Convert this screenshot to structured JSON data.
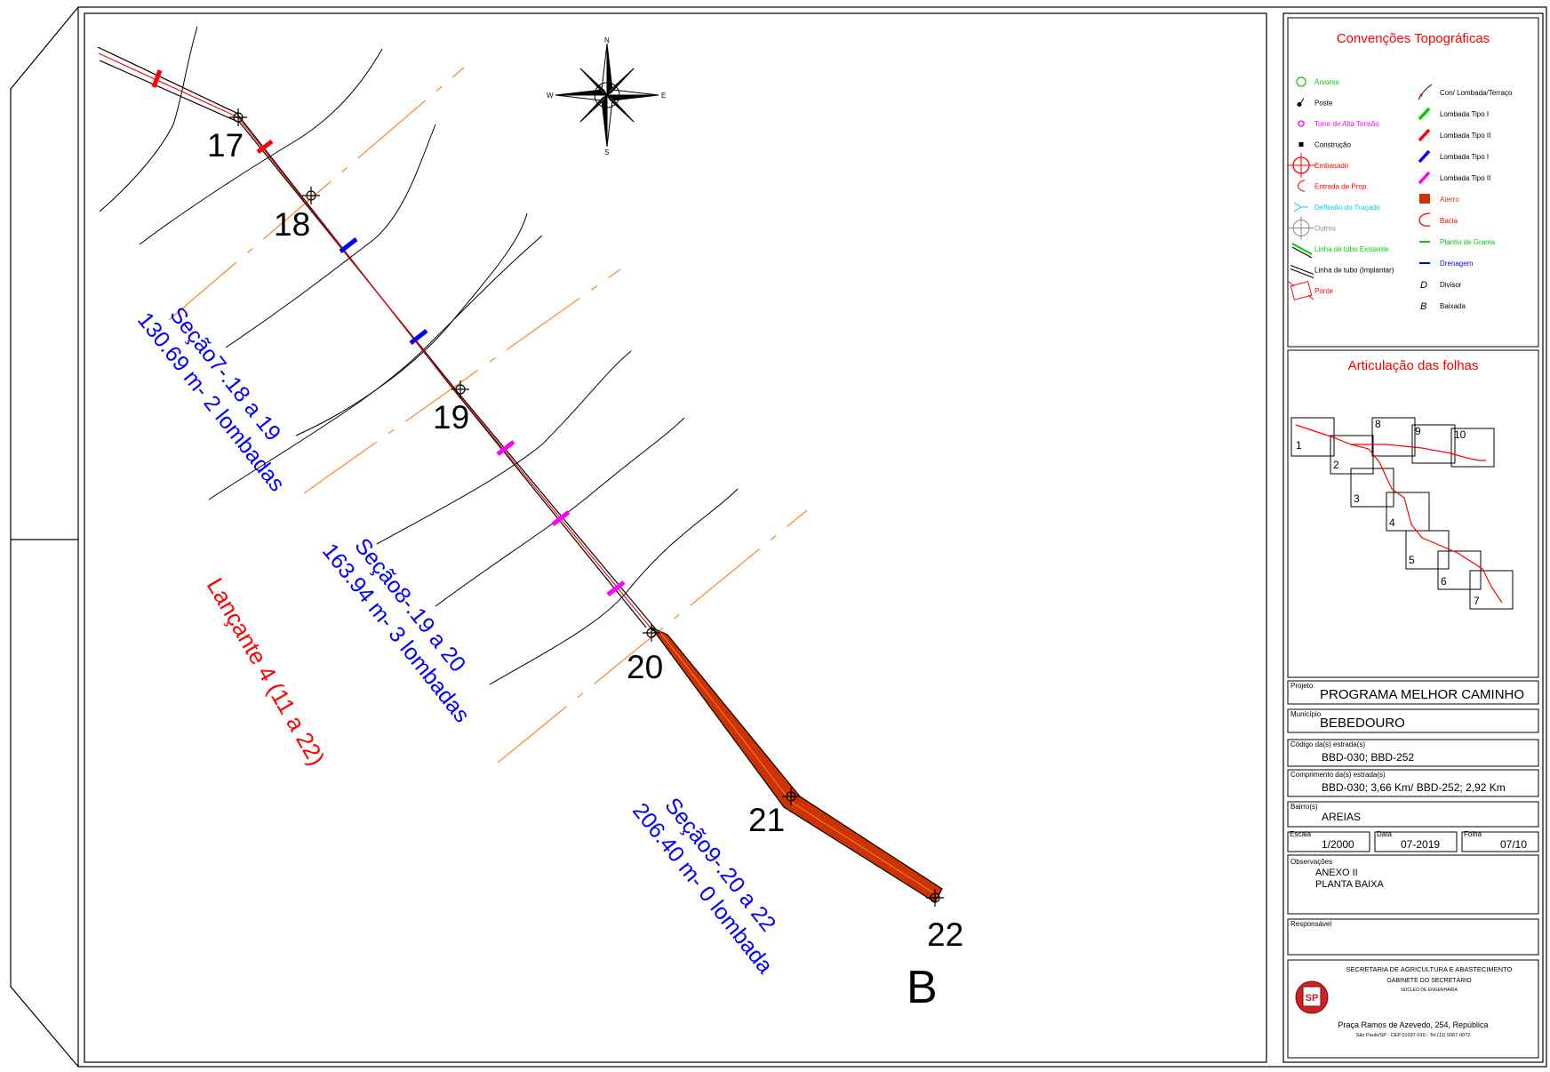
{
  "colors": {
    "road_center": "#ff0000",
    "road_edge": "#000000",
    "contour": "#000000",
    "section_line": "#ff8c32",
    "section_text": "#0000ff",
    "lancante_text": "#ff0000",
    "aterro": "#cc3300",
    "lombada_tipo1_green": "#00cc00",
    "lombada_tipo2_red": "#ff0000",
    "lombada_tipo1_blue": "#0000ff",
    "lombada_tipo2_magenta": "#ff00ff"
  },
  "compass": {
    "n": "N",
    "s": "S",
    "e": "E",
    "w": "W"
  },
  "stations": [
    {
      "label": "17"
    },
    {
      "label": "18"
    },
    {
      "label": "19"
    },
    {
      "label": "20"
    },
    {
      "label": "21"
    },
    {
      "label": "22"
    }
  ],
  "end_label": "B",
  "sections": [
    {
      "line1": "Seção7-.18 a 19",
      "line2": "130.69 m- 2 lombadas"
    },
    {
      "line1": "Seção8-.19 a 20",
      "line2": "163.94 m- 3 lombadas"
    },
    {
      "line1": "Seção9-.20 a 22",
      "line2": "206.40 m- 0 lombada"
    }
  ],
  "lancante": "Lançante 4 (11 a 22)",
  "legend": {
    "title": "Convenções Topográficas",
    "left_items": [
      {
        "label": "Árvores",
        "icon": "tree-icon",
        "color": "#00cc00"
      },
      {
        "label": "Poste",
        "icon": "pole-icon",
        "color": "#000000"
      },
      {
        "label": "Torre de Alta Tensão",
        "icon": "tower-icon",
        "color": "#ff00ff"
      },
      {
        "label": "Construção",
        "icon": "building-icon",
        "color": "#000000"
      },
      {
        "label": "Embasado",
        "icon": "target-icon",
        "color": "#ff0000"
      },
      {
        "label": "Entrada de Prop.",
        "icon": "entry-icon",
        "color": "#ff0000"
      },
      {
        "label": "Deflexão do Traçado",
        "icon": "deflection-icon",
        "color": "#00ccff"
      },
      {
        "label": "Outros",
        "icon": "others-icon",
        "color": "#888888"
      },
      {
        "label": "Linha de tubo Existente",
        "icon": "pipe-existing-icon",
        "color": "#00cc00"
      },
      {
        "label": "Linha de tubo (Implantar)",
        "icon": "pipe-new-icon",
        "color": "#000000"
      },
      {
        "label": "Ponte",
        "icon": "bridge-icon",
        "color": "#ff0000"
      }
    ],
    "right_items": [
      {
        "label": "Con/ Lombada/Terraço",
        "icon": "lombada-terraco-icon",
        "color": "#000000"
      },
      {
        "label": "Lombada Tipo I",
        "icon": "lombada-icon",
        "color": "#00cc00"
      },
      {
        "label": "Lombada Tipo II",
        "icon": "lombada-icon",
        "color": "#ff0000"
      },
      {
        "label": "Lombada Tipo I",
        "icon": "lombada-icon",
        "color": "#0000ff"
      },
      {
        "label": "Lombada Tipo II",
        "icon": "lombada-icon",
        "color": "#ff00ff"
      },
      {
        "label": "Aterro",
        "icon": "aterro-icon",
        "color": "#cc3300"
      },
      {
        "label": "Bacia",
        "icon": "basin-icon",
        "color": "#ff0000"
      },
      {
        "label": "Plantio de Grama",
        "icon": "grass-icon",
        "color": "#00cc00"
      },
      {
        "label": "Drenagem",
        "icon": "drain-icon",
        "color": "#0000ff"
      },
      {
        "label": "Divisor",
        "symbol": "D",
        "color": "#000000"
      },
      {
        "label": "Baixada",
        "symbol": "B",
        "color": "#000000"
      }
    ]
  },
  "articulacao": {
    "title": "Articulação das folhas",
    "sheets": [
      "1",
      "2",
      "3",
      "4",
      "5",
      "6",
      "7",
      "8",
      "9",
      "10"
    ]
  },
  "info": {
    "projeto_label": "Projeto",
    "projeto": "PROGRAMA MELHOR CAMINHO",
    "municipio_label": "Município",
    "municipio": "BEBEDOURO",
    "codigo_label": "Código da(s) estrada(s)",
    "codigo": "BBD-030; BBD-252",
    "comprimento_label": "Comprimento da(s) estrada(s)",
    "comprimento": "BBD-030; 3,66 Km/ BBD-252; 2,92 Km",
    "bairro_label": "Bairro(s)",
    "bairro": "AREIAS",
    "escala_label": "Escala",
    "escala": "1/2000",
    "data_label": "Data",
    "data": "07-2019",
    "folha_label": "Folha",
    "folha": "07/10",
    "obs_label": "Observações",
    "obs1": "ANEXO II",
    "obs2": "PLANTA BAIXA",
    "resp_label": "Responsável"
  },
  "org": {
    "line1": "SECRETARIA DE AGRICULTURA E ABASTECIMENTO",
    "line2": "GABINETE DO SECRETÁRIO",
    "line3": "NÚCLEO DE ENGENHARIA",
    "address": "Praça Ramos de Azevedo, 254, República",
    "address2": "São Paulo/SP - CEP 01037-010 - Tel.(11) 5067-0072",
    "seal": "SP"
  }
}
